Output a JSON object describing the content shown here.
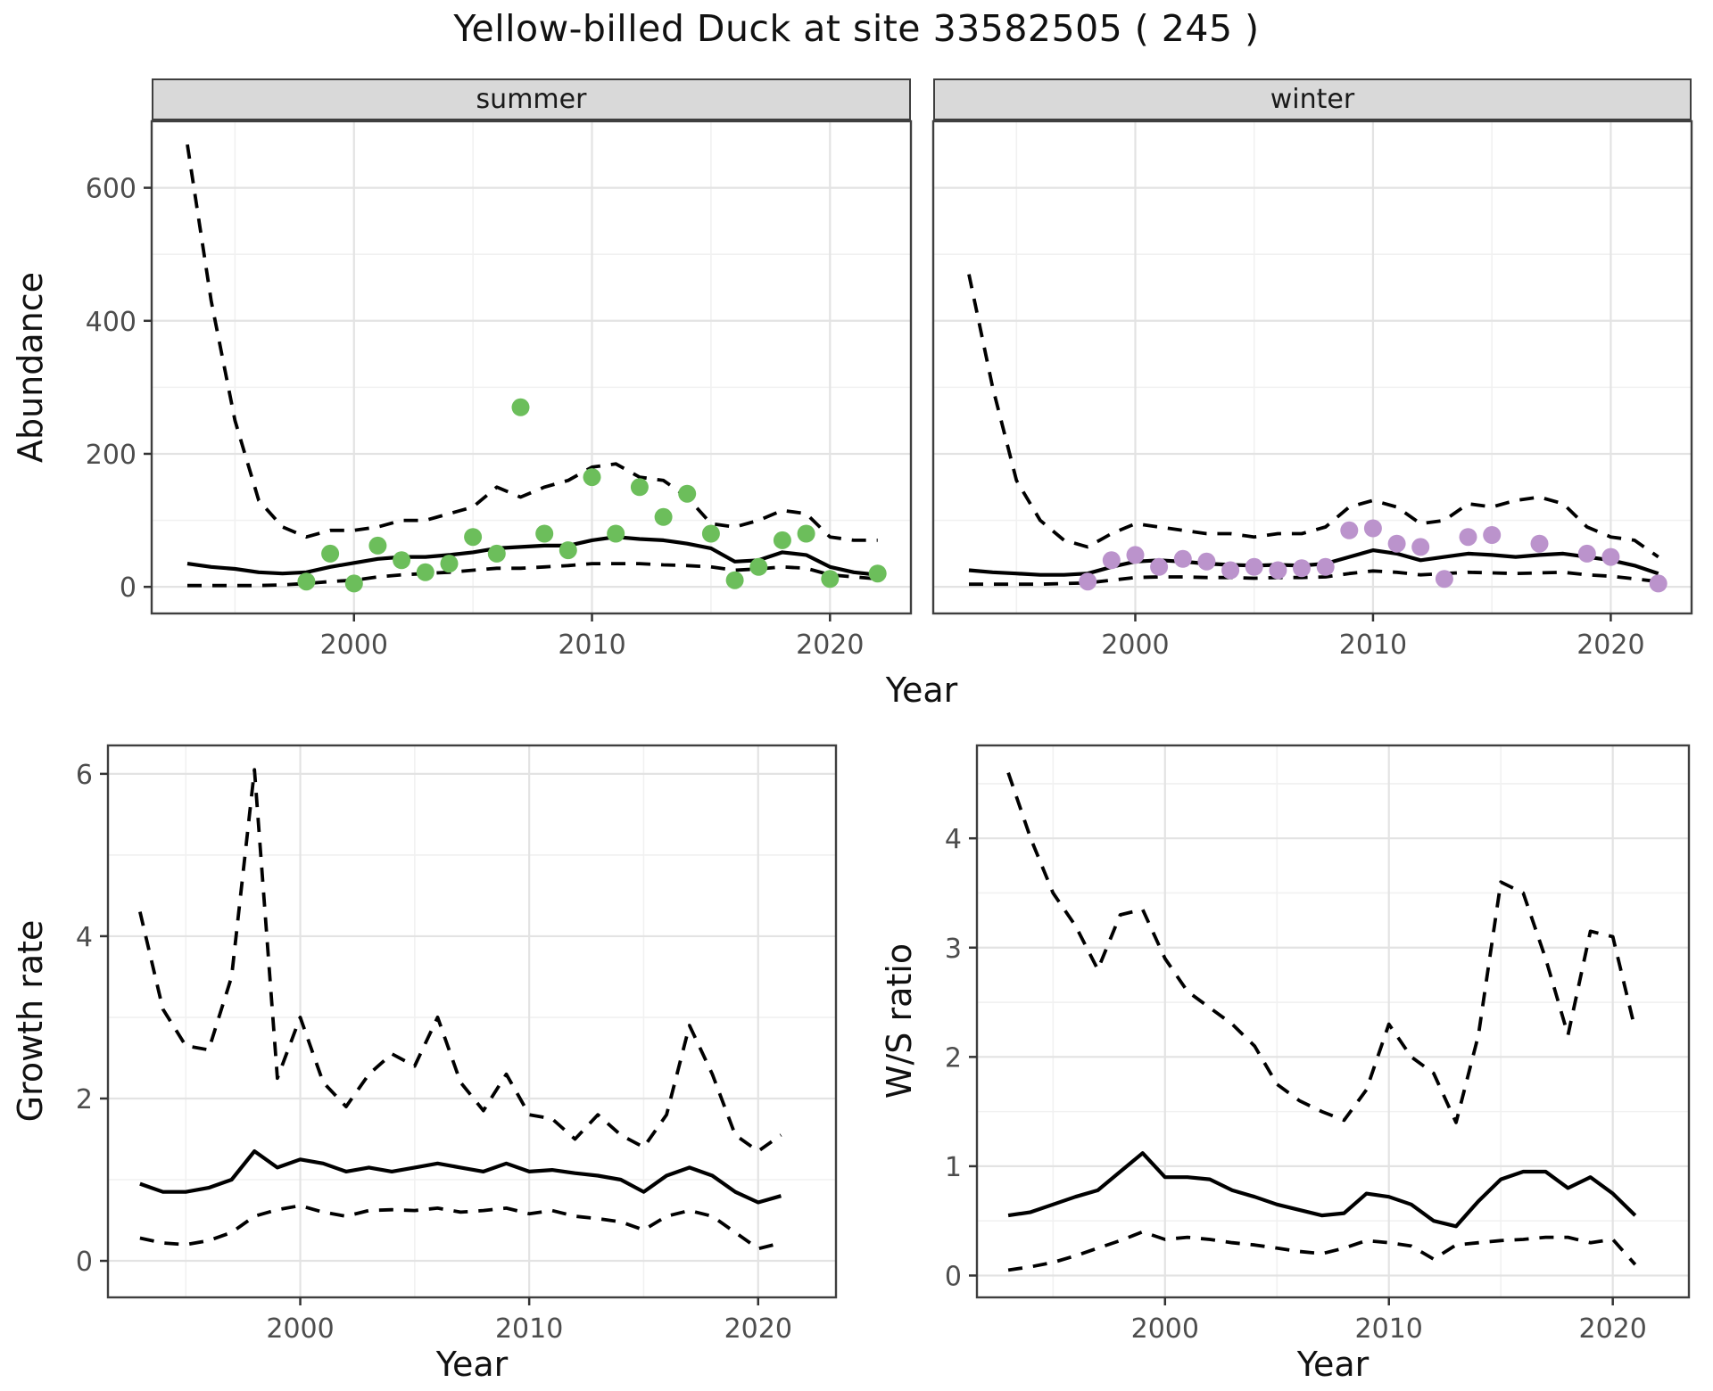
{
  "title": "Yellow-billed Duck at site 33582505 ( 245 )",
  "facets": {
    "summer": "summer",
    "winter": "winter"
  },
  "axis_titles": {
    "abundance": "Abundance",
    "year_top": "Year",
    "growth": "Growth rate",
    "ws": "W/S ratio",
    "year_growth": "Year",
    "year_ws": "Year"
  },
  "colors": {
    "summer_points": "#6cbe5b",
    "winter_points": "#bb93cc",
    "line": "#000000",
    "grid_major": "#e3e3e3",
    "grid_minor": "#f1f1f1",
    "panel_border": "#3f3f3f",
    "tick_mark": "#333333",
    "tick_label": "#4d4d4d",
    "strip_bg": "#d9d9d9"
  },
  "chart_data": [
    {
      "id": "abundance-summer",
      "type": "scatter",
      "facet": "summer",
      "xlabel": "Year",
      "ylabel": "Abundance",
      "xlim": [
        1991.5,
        2023.4
      ],
      "ylim": [
        -40,
        700
      ],
      "x_major": [
        2000,
        2010,
        2020
      ],
      "x_minor": [
        1995,
        2005,
        2015
      ],
      "y_major": [
        0,
        200,
        400,
        600
      ],
      "y_minor": [
        100,
        300,
        500
      ],
      "x_tick_labels": [
        "2000",
        "2010",
        "2020"
      ],
      "y_tick_labels": [
        "0",
        "200",
        "400",
        "600"
      ],
      "grid": true,
      "series": [
        {
          "name": "upper-ci",
          "style": "dashed",
          "x": [
            1993,
            1994,
            1995,
            1996,
            1997,
            1998,
            1999,
            2000,
            2001,
            2002,
            2003,
            2004,
            2005,
            2006,
            2007,
            2008,
            2009,
            2010,
            2011,
            2012,
            2013,
            2014,
            2015,
            2016,
            2017,
            2018,
            2019,
            2020,
            2021,
            2022
          ],
          "y": [
            665,
            430,
            250,
            130,
            90,
            75,
            85,
            85,
            90,
            100,
            100,
            110,
            120,
            150,
            135,
            150,
            160,
            180,
            185,
            165,
            160,
            135,
            95,
            90,
            100,
            115,
            110,
            75,
            70,
            70
          ]
        },
        {
          "name": "estimate",
          "style": "solid",
          "x": [
            1993,
            1994,
            1995,
            1996,
            1997,
            1998,
            1999,
            2000,
            2001,
            2002,
            2003,
            2004,
            2005,
            2006,
            2007,
            2008,
            2009,
            2010,
            2011,
            2012,
            2013,
            2014,
            2015,
            2016,
            2017,
            2018,
            2019,
            2020,
            2021,
            2022
          ],
          "y": [
            35,
            30,
            27,
            22,
            20,
            22,
            30,
            36,
            42,
            45,
            45,
            48,
            52,
            58,
            60,
            62,
            62,
            70,
            75,
            72,
            70,
            65,
            58,
            38,
            40,
            52,
            48,
            30,
            22,
            18
          ]
        },
        {
          "name": "lower-ci",
          "style": "dashed",
          "x": [
            1993,
            1994,
            1995,
            1996,
            1997,
            1998,
            1999,
            2000,
            2001,
            2002,
            2003,
            2004,
            2005,
            2006,
            2007,
            2008,
            2009,
            2010,
            2011,
            2012,
            2013,
            2014,
            2015,
            2016,
            2017,
            2018,
            2019,
            2020,
            2021,
            2022
          ],
          "y": [
            2,
            2,
            2,
            2,
            3,
            5,
            8,
            10,
            15,
            18,
            20,
            22,
            25,
            28,
            28,
            30,
            32,
            35,
            35,
            35,
            33,
            32,
            30,
            25,
            27,
            30,
            28,
            18,
            15,
            12
          ]
        }
      ],
      "points": {
        "name": "observed-counts",
        "color": "#6cbe5b",
        "x": [
          1998,
          1999,
          2000,
          2001,
          2002,
          2003,
          2004,
          2005,
          2006,
          2007,
          2008,
          2009,
          2010,
          2011,
          2012,
          2013,
          2014,
          2015,
          2016,
          2017,
          2018,
          2019,
          2020,
          2022
        ],
        "y": [
          8,
          50,
          5,
          62,
          40,
          22,
          35,
          75,
          50,
          270,
          80,
          55,
          165,
          80,
          150,
          105,
          140,
          80,
          10,
          30,
          70,
          80,
          12,
          20
        ]
      }
    },
    {
      "id": "abundance-winter",
      "type": "scatter",
      "facet": "winter",
      "xlabel": "Year",
      "ylabel": "Abundance",
      "xlim": [
        1991.5,
        2023.4
      ],
      "ylim": [
        -40,
        700
      ],
      "x_major": [
        2000,
        2010,
        2020
      ],
      "x_minor": [
        1995,
        2005,
        2015
      ],
      "y_major": [
        0,
        200,
        400,
        600
      ],
      "y_minor": [
        100,
        300,
        500
      ],
      "x_tick_labels": [
        "2000",
        "2010",
        "2020"
      ],
      "y_tick_labels": [],
      "grid": true,
      "series": [
        {
          "name": "upper-ci",
          "style": "dashed",
          "x": [
            1993,
            1994,
            1995,
            1996,
            1997,
            1998,
            1999,
            2000,
            2001,
            2002,
            2003,
            2004,
            2005,
            2006,
            2007,
            2008,
            2009,
            2010,
            2011,
            2012,
            2013,
            2014,
            2015,
            2016,
            2017,
            2018,
            2019,
            2020,
            2021,
            2022
          ],
          "y": [
            470,
            300,
            160,
            100,
            70,
            60,
            80,
            95,
            90,
            85,
            80,
            80,
            75,
            80,
            80,
            90,
            120,
            130,
            120,
            95,
            100,
            125,
            120,
            130,
            135,
            125,
            90,
            75,
            70,
            45
          ]
        },
        {
          "name": "estimate",
          "style": "solid",
          "x": [
            1993,
            1994,
            1995,
            1996,
            1997,
            1998,
            1999,
            2000,
            2001,
            2002,
            2003,
            2004,
            2005,
            2006,
            2007,
            2008,
            2009,
            2010,
            2011,
            2012,
            2013,
            2014,
            2015,
            2016,
            2017,
            2018,
            2019,
            2020,
            2021,
            2022
          ],
          "y": [
            25,
            22,
            20,
            18,
            18,
            20,
            30,
            38,
            40,
            38,
            35,
            33,
            32,
            33,
            32,
            35,
            45,
            55,
            50,
            40,
            45,
            50,
            48,
            45,
            48,
            50,
            45,
            40,
            32,
            20
          ]
        },
        {
          "name": "lower-ci",
          "style": "dashed",
          "x": [
            1993,
            1994,
            1995,
            1996,
            1997,
            1998,
            1999,
            2000,
            2001,
            2002,
            2003,
            2004,
            2005,
            2006,
            2007,
            2008,
            2009,
            2010,
            2011,
            2012,
            2013,
            2014,
            2015,
            2016,
            2017,
            2018,
            2019,
            2020,
            2021,
            2022
          ],
          "y": [
            4,
            4,
            4,
            4,
            5,
            6,
            10,
            14,
            15,
            15,
            14,
            14,
            13,
            14,
            14,
            15,
            20,
            24,
            22,
            18,
            20,
            22,
            21,
            20,
            21,
            22,
            18,
            16,
            12,
            8
          ]
        }
      ],
      "points": {
        "name": "observed-counts",
        "color": "#bb93cc",
        "x": [
          1998,
          1999,
          2000,
          2001,
          2002,
          2003,
          2004,
          2005,
          2006,
          2007,
          2008,
          2009,
          2010,
          2011,
          2012,
          2013,
          2014,
          2015,
          2017,
          2019,
          2020,
          2022
        ],
        "y": [
          8,
          40,
          48,
          30,
          42,
          38,
          25,
          30,
          25,
          28,
          30,
          85,
          88,
          65,
          60,
          12,
          75,
          78,
          65,
          50,
          45,
          5
        ]
      }
    },
    {
      "id": "growth-rate",
      "type": "line",
      "xlabel": "Year",
      "ylabel": "Growth rate",
      "xlim": [
        1991.6,
        2023.4
      ],
      "ylim": [
        -0.45,
        6.35
      ],
      "x_major": [
        2000,
        2010,
        2020
      ],
      "x_minor": [
        1995,
        2005,
        2015
      ],
      "y_major": [
        0,
        2,
        4,
        6
      ],
      "y_minor": [
        1,
        3,
        5
      ],
      "x_tick_labels": [
        "2000",
        "2010",
        "2020"
      ],
      "y_tick_labels": [
        "0",
        "2",
        "4",
        "6"
      ],
      "grid": true,
      "series": [
        {
          "name": "upper-ci",
          "style": "dashed",
          "x": [
            1993,
            1994,
            1995,
            1996,
            1997,
            1998,
            1999,
            2000,
            2001,
            2002,
            2003,
            2004,
            2005,
            2006,
            2007,
            2008,
            2009,
            2010,
            2011,
            2012,
            2013,
            2014,
            2015,
            2016,
            2017,
            2018,
            2019,
            2020,
            2021
          ],
          "y": [
            4.3,
            3.1,
            2.65,
            2.6,
            3.5,
            6.05,
            2.25,
            3.0,
            2.2,
            1.9,
            2.3,
            2.55,
            2.4,
            3.0,
            2.2,
            1.85,
            2.3,
            1.8,
            1.75,
            1.5,
            1.8,
            1.55,
            1.4,
            1.8,
            2.9,
            2.3,
            1.55,
            1.35,
            1.55
          ]
        },
        {
          "name": "estimate",
          "style": "solid",
          "x": [
            1993,
            1994,
            1995,
            1996,
            1997,
            1998,
            1999,
            2000,
            2001,
            2002,
            2003,
            2004,
            2005,
            2006,
            2007,
            2008,
            2009,
            2010,
            2011,
            2012,
            2013,
            2014,
            2015,
            2016,
            2017,
            2018,
            2019,
            2020,
            2021
          ],
          "y": [
            0.95,
            0.85,
            0.85,
            0.9,
            1.0,
            1.35,
            1.15,
            1.25,
            1.2,
            1.1,
            1.15,
            1.1,
            1.15,
            1.2,
            1.15,
            1.1,
            1.2,
            1.1,
            1.12,
            1.08,
            1.05,
            1.0,
            0.85,
            1.05,
            1.15,
            1.05,
            0.85,
            0.72,
            0.8
          ]
        },
        {
          "name": "lower-ci",
          "style": "dashed",
          "x": [
            1993,
            1994,
            1995,
            1996,
            1997,
            1998,
            1999,
            2000,
            2001,
            2002,
            2003,
            2004,
            2005,
            2006,
            2007,
            2008,
            2009,
            2010,
            2011,
            2012,
            2013,
            2014,
            2015,
            2016,
            2017,
            2018,
            2019,
            2020,
            2021
          ],
          "y": [
            0.28,
            0.22,
            0.2,
            0.25,
            0.35,
            0.55,
            0.63,
            0.68,
            0.6,
            0.55,
            0.62,
            0.63,
            0.62,
            0.65,
            0.6,
            0.62,
            0.65,
            0.58,
            0.62,
            0.55,
            0.52,
            0.48,
            0.38,
            0.55,
            0.62,
            0.55,
            0.35,
            0.15,
            0.22
          ]
        }
      ]
    },
    {
      "id": "ws-ratio",
      "type": "line",
      "xlabel": "Year",
      "ylabel": "W/S ratio",
      "xlim": [
        1991.6,
        2023.4
      ],
      "ylim": [
        -0.2,
        4.85
      ],
      "x_major": [
        2000,
        2010,
        2020
      ],
      "x_minor": [
        1995,
        2005,
        2015
      ],
      "y_major": [
        0,
        1,
        2,
        3,
        4
      ],
      "y_minor": [
        0.5,
        1.5,
        2.5,
        3.5,
        4.5
      ],
      "x_tick_labels": [
        "2000",
        "2010",
        "2020"
      ],
      "y_tick_labels": [
        "0",
        "1",
        "2",
        "3",
        "4"
      ],
      "grid": true,
      "series": [
        {
          "name": "upper-ci",
          "style": "dashed",
          "x": [
            1993,
            1994,
            1995,
            1996,
            1997,
            1998,
            1999,
            2000,
            2001,
            2002,
            2003,
            2004,
            2005,
            2006,
            2007,
            2008,
            2009,
            2010,
            2011,
            2012,
            2013,
            2014,
            2015,
            2016,
            2017,
            2018,
            2019,
            2020,
            2021
          ],
          "y": [
            4.6,
            4.0,
            3.5,
            3.2,
            2.8,
            3.3,
            3.35,
            2.9,
            2.6,
            2.45,
            2.3,
            2.1,
            1.75,
            1.6,
            1.5,
            1.42,
            1.7,
            2.3,
            2.0,
            1.85,
            1.4,
            2.2,
            3.6,
            3.5,
            2.9,
            2.2,
            3.15,
            3.1,
            2.25
          ]
        },
        {
          "name": "estimate",
          "style": "solid",
          "x": [
            1993,
            1994,
            1995,
            1996,
            1997,
            1998,
            1999,
            2000,
            2001,
            2002,
            2003,
            2004,
            2005,
            2006,
            2007,
            2008,
            2009,
            2010,
            2011,
            2012,
            2013,
            2014,
            2015,
            2016,
            2017,
            2018,
            2019,
            2020,
            2021
          ],
          "y": [
            0.55,
            0.58,
            0.65,
            0.72,
            0.78,
            0.95,
            1.12,
            0.9,
            0.9,
            0.88,
            0.78,
            0.72,
            0.65,
            0.6,
            0.55,
            0.57,
            0.75,
            0.72,
            0.65,
            0.5,
            0.45,
            0.68,
            0.88,
            0.95,
            0.95,
            0.8,
            0.9,
            0.75,
            0.55
          ]
        },
        {
          "name": "lower-ci",
          "style": "dashed",
          "x": [
            1993,
            1994,
            1995,
            1996,
            1997,
            1998,
            1999,
            2000,
            2001,
            2002,
            2003,
            2004,
            2005,
            2006,
            2007,
            2008,
            2009,
            2010,
            2011,
            2012,
            2013,
            2014,
            2015,
            2016,
            2017,
            2018,
            2019,
            2020,
            2021
          ],
          "y": [
            0.05,
            0.08,
            0.12,
            0.18,
            0.25,
            0.32,
            0.4,
            0.33,
            0.35,
            0.33,
            0.3,
            0.28,
            0.25,
            0.22,
            0.2,
            0.25,
            0.32,
            0.3,
            0.27,
            0.15,
            0.28,
            0.3,
            0.32,
            0.33,
            0.35,
            0.35,
            0.3,
            0.33,
            0.1
          ]
        }
      ]
    }
  ]
}
